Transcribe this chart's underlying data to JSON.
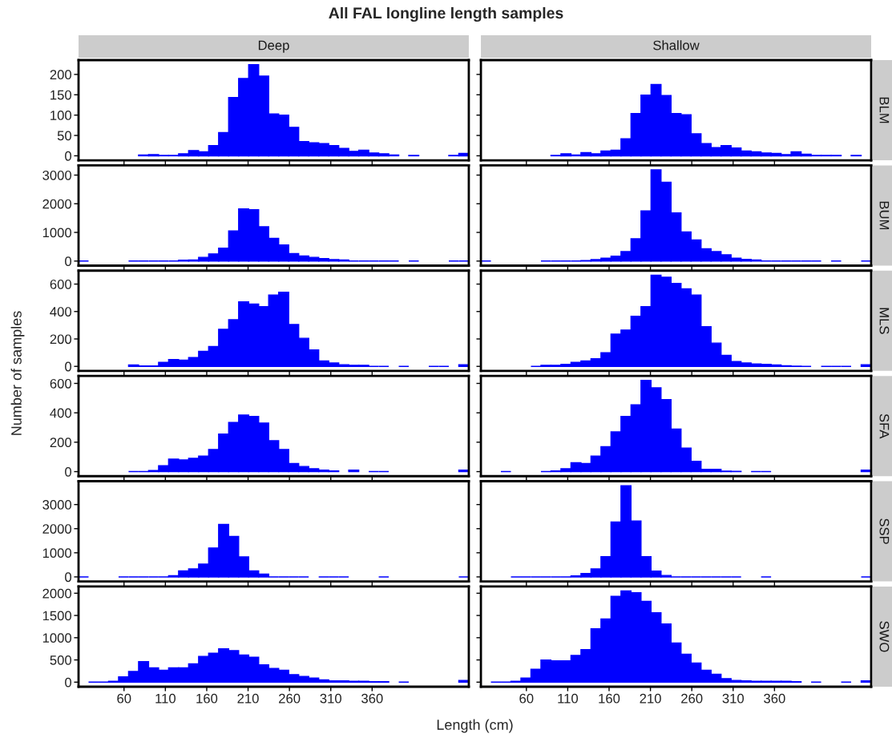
{
  "chart_data": [
    {
      "type": "histogram",
      "title": "All FAL longline length samples",
      "subtitle": "Deep",
      "color": "#0000ff",
      "tick_labels": "y",
      "xlim": [
        5,
        476.9
      ],
      "xticks": [
        60,
        110,
        160,
        210,
        260,
        310,
        360
      ],
      "ylim": [
        -11.2,
        235.2
      ],
      "yticks": [
        0,
        50,
        100,
        150,
        200
      ],
      "bins": [
        5,
        17.1,
        29.2,
        41.3,
        53.4,
        65.5,
        77.6,
        89.7,
        101.8,
        113.9,
        126,
        138.1,
        150.2,
        162.3,
        174.4,
        186.5,
        198.6,
        210.7,
        222.8,
        234.9,
        247,
        259.1,
        271.2,
        283.3,
        295.4,
        307.5,
        319.6,
        331.7,
        343.8,
        355.9,
        368,
        380.1,
        392.2,
        404.3,
        416.4,
        428.5,
        440.6,
        452.7,
        464.8,
        476.9
      ],
      "values": [
        null,
        null,
        null,
        null,
        null,
        null,
        2,
        3,
        1,
        1,
        5,
        13,
        10,
        25,
        57,
        143,
        190,
        224,
        196,
        103,
        100,
        70,
        35,
        32,
        30,
        25,
        18,
        11,
        14,
        7,
        5,
        2,
        null,
        1,
        null,
        null,
        null,
        1,
        6
      ]
    },
    {
      "type": "histogram",
      "subtitle": "Shallow",
      "y2label": "BLM",
      "color": "#0000ff",
      "tick_labels": false,
      "xlim": [
        5,
        476.9
      ],
      "xticks": [
        60,
        110,
        160,
        210,
        260,
        310,
        360
      ],
      "ylim": [
        -11.2,
        235.2
      ],
      "yticks": [
        0,
        50,
        100,
        150,
        200
      ],
      "bins": [
        5,
        17.1,
        29.2,
        41.3,
        53.4,
        65.5,
        77.6,
        89.7,
        101.8,
        113.9,
        126,
        138.1,
        150.2,
        162.3,
        174.4,
        186.5,
        198.6,
        210.7,
        222.8,
        234.9,
        247,
        259.1,
        271.2,
        283.3,
        295.4,
        307.5,
        319.6,
        331.7,
        343.8,
        355.9,
        368,
        380.1,
        392.2,
        404.3,
        416.4,
        428.5,
        440.6,
        452.7,
        464.8,
        476.9
      ],
      "values": [
        null,
        null,
        null,
        null,
        null,
        null,
        null,
        1,
        5,
        2,
        8,
        5,
        12,
        14,
        42,
        104,
        149,
        175,
        148,
        104,
        101,
        54,
        30,
        20,
        25,
        19,
        12,
        10,
        7,
        6,
        3,
        10,
        4,
        1,
        1,
        1,
        null,
        1,
        null
      ]
    },
    {
      "type": "histogram",
      "color": "#0000ff",
      "tick_labels": "y",
      "xlim": [
        5,
        476.9
      ],
      "xticks": [
        60,
        110,
        160,
        210,
        260,
        310,
        360
      ],
      "ylim": [
        -159,
        3339
      ],
      "yticks": [
        0,
        1000,
        2000,
        3000
      ],
      "bins": [
        5,
        17.1,
        29.2,
        41.3,
        53.4,
        65.5,
        77.6,
        89.7,
        101.8,
        113.9,
        126,
        138.1,
        150.2,
        162.3,
        174.4,
        186.5,
        198.6,
        210.7,
        222.8,
        234.9,
        247,
        259.1,
        271.2,
        283.3,
        295.4,
        307.5,
        319.6,
        331.7,
        343.8,
        355.9,
        368,
        380.1,
        392.2,
        404.3,
        416.4,
        428.5,
        440.6,
        452.7,
        464.8,
        476.9
      ],
      "values": [
        0,
        null,
        null,
        null,
        null,
        0,
        0,
        0,
        0,
        0,
        30,
        40,
        130,
        250,
        450,
        1050,
        1820,
        1790,
        1200,
        790,
        560,
        260,
        180,
        130,
        90,
        50,
        40,
        0,
        0,
        0,
        0,
        0,
        null,
        0,
        null,
        null,
        null,
        0,
        0
      ]
    },
    {
      "type": "histogram",
      "y2label": "BUM",
      "color": "#0000ff",
      "tick_labels": false,
      "xlim": [
        5,
        476.9
      ],
      "xticks": [
        60,
        110,
        160,
        210,
        260,
        310,
        360
      ],
      "ylim": [
        -159,
        3339
      ],
      "yticks": [
        0,
        1000,
        2000,
        3000
      ],
      "bins": [
        5,
        17.1,
        29.2,
        41.3,
        53.4,
        65.5,
        77.6,
        89.7,
        101.8,
        113.9,
        126,
        138.1,
        150.2,
        162.3,
        174.4,
        186.5,
        198.6,
        210.7,
        222.8,
        234.9,
        247,
        259.1,
        271.2,
        283.3,
        295.4,
        307.5,
        319.6,
        331.7,
        343.8,
        355.9,
        368,
        380.1,
        392.2,
        404.3,
        416.4,
        428.5,
        440.6,
        452.7,
        464.8,
        476.9
      ],
      "values": [
        0,
        null,
        null,
        null,
        null,
        null,
        0,
        0,
        0,
        0,
        20,
        50,
        100,
        170,
        330,
        780,
        1750,
        3180,
        2750,
        1680,
        1020,
        740,
        430,
        330,
        220,
        100,
        60,
        40,
        0,
        0,
        0,
        0,
        0,
        0,
        null,
        0,
        null,
        null,
        0
      ]
    },
    {
      "type": "histogram",
      "color": "#0000ff",
      "tick_labels": "y",
      "xlim": [
        5,
        476.9
      ],
      "xticks": [
        60,
        110,
        160,
        210,
        260,
        310,
        360
      ],
      "ylim": [
        -33,
        698
      ],
      "yticks": [
        0,
        200,
        400,
        600
      ],
      "bins": [
        5,
        17.1,
        29.2,
        41.3,
        53.4,
        65.5,
        77.6,
        89.7,
        101.8,
        113.9,
        126,
        138.1,
        150.2,
        162.3,
        174.4,
        186.5,
        198.6,
        210.7,
        222.8,
        234.9,
        247,
        259.1,
        271.2,
        283.3,
        295.4,
        307.5,
        319.6,
        331.7,
        343.8,
        355.9,
        368,
        380.1,
        392.2,
        404.3,
        416.4,
        428.5,
        440.6,
        452.7,
        464.8,
        476.9
      ],
      "values": [
        null,
        null,
        null,
        null,
        null,
        10,
        3,
        3,
        30,
        50,
        45,
        65,
        110,
        145,
        270,
        340,
        470,
        455,
        435,
        520,
        540,
        305,
        205,
        120,
        40,
        25,
        12,
        8,
        8,
        0,
        0,
        null,
        0,
        null,
        null,
        0,
        0,
        null,
        12
      ]
    },
    {
      "type": "histogram",
      "y2label": "MLS",
      "color": "#0000ff",
      "tick_labels": false,
      "xlim": [
        5,
        476.9
      ],
      "xticks": [
        60,
        110,
        160,
        210,
        260,
        310,
        360
      ],
      "ylim": [
        -33,
        698
      ],
      "yticks": [
        0,
        200,
        400,
        600
      ],
      "bins": [
        5,
        17.1,
        29.2,
        41.3,
        53.4,
        65.5,
        77.6,
        89.7,
        101.8,
        113.9,
        126,
        138.1,
        150.2,
        162.3,
        174.4,
        186.5,
        198.6,
        210.7,
        222.8,
        234.9,
        247,
        259.1,
        271.2,
        283.3,
        295.4,
        307.5,
        319.6,
        331.7,
        343.8,
        355.9,
        368,
        380.1,
        392.2,
        404.3,
        416.4,
        428.5,
        440.6,
        452.7,
        464.8,
        476.9
      ],
      "values": [
        null,
        null,
        null,
        null,
        null,
        0,
        8,
        8,
        15,
        30,
        40,
        55,
        100,
        235,
        265,
        365,
        435,
        665,
        650,
        605,
        565,
        520,
        290,
        170,
        80,
        35,
        25,
        18,
        15,
        10,
        5,
        2,
        0,
        null,
        0,
        0,
        0,
        null,
        12
      ]
    },
    {
      "type": "histogram",
      "ylabel": "Number of samples",
      "color": "#0000ff",
      "tick_labels": "y",
      "xlim": [
        5,
        476.9
      ],
      "xticks": [
        60,
        110,
        160,
        210,
        260,
        310,
        360
      ],
      "ylim": [
        -31,
        651
      ],
      "yticks": [
        0,
        200,
        400,
        600
      ],
      "bins": [
        5,
        17.1,
        29.2,
        41.3,
        53.4,
        65.5,
        77.6,
        89.7,
        101.8,
        113.9,
        126,
        138.1,
        150.2,
        162.3,
        174.4,
        186.5,
        198.6,
        210.7,
        222.8,
        234.9,
        247,
        259.1,
        271.2,
        283.3,
        295.4,
        307.5,
        319.6,
        331.7,
        343.8,
        355.9,
        368,
        380.1,
        392.2,
        404.3,
        416.4,
        428.5,
        440.6,
        452.7,
        464.8,
        476.9
      ],
      "values": [
        null,
        null,
        null,
        null,
        null,
        0,
        0,
        8,
        40,
        85,
        80,
        90,
        105,
        150,
        255,
        335,
        385,
        375,
        330,
        210,
        150,
        55,
        35,
        20,
        10,
        5,
        null,
        10,
        null,
        0,
        0,
        null,
        null,
        null,
        null,
        null,
        null,
        null,
        10
      ]
    },
    {
      "type": "histogram",
      "y2label": "SFA",
      "color": "#0000ff",
      "tick_labels": false,
      "xlim": [
        5,
        476.9
      ],
      "xticks": [
        60,
        110,
        160,
        210,
        260,
        310,
        360
      ],
      "ylim": [
        -31,
        651
      ],
      "yticks": [
        0,
        200,
        400,
        600
      ],
      "bins": [
        5,
        17.1,
        29.2,
        41.3,
        53.4,
        65.5,
        77.6,
        89.7,
        101.8,
        113.9,
        126,
        138.1,
        150.2,
        162.3,
        174.4,
        186.5,
        198.6,
        210.7,
        222.8,
        234.9,
        247,
        259.1,
        271.2,
        283.3,
        295.4,
        307.5,
        319.6,
        331.7,
        343.8,
        355.9,
        368,
        380.1,
        392.2,
        404.3,
        416.4,
        428.5,
        440.6,
        452.7,
        464.8,
        476.9
      ],
      "values": [
        null,
        null,
        0,
        null,
        null,
        null,
        0,
        5,
        20,
        60,
        55,
        105,
        170,
        270,
        375,
        455,
        620,
        570,
        490,
        290,
        160,
        70,
        15,
        15,
        3,
        2,
        null,
        0,
        0,
        null,
        null,
        null,
        null,
        null,
        null,
        null,
        null,
        null,
        10
      ]
    },
    {
      "type": "histogram",
      "color": "#0000ff",
      "tick_labels": "y",
      "xlim": [
        5,
        476.9
      ],
      "xticks": [
        60,
        110,
        160,
        210,
        260,
        310,
        360
      ],
      "ylim": [
        -189,
        3969
      ],
      "yticks": [
        0,
        1000,
        2000,
        3000
      ],
      "bins": [
        5,
        17.1,
        29.2,
        41.3,
        53.4,
        65.5,
        77.6,
        89.7,
        101.8,
        113.9,
        126,
        138.1,
        150.2,
        162.3,
        174.4,
        186.5,
        198.6,
        210.7,
        222.8,
        234.9,
        247,
        259.1,
        271.2,
        283.3,
        295.4,
        307.5,
        319.6,
        331.7,
        343.8,
        355.9,
        368,
        380.1,
        392.2,
        404.3,
        416.4,
        428.5,
        440.6,
        452.7,
        464.8,
        476.9
      ],
      "values": [
        0,
        null,
        null,
        null,
        0,
        0,
        0,
        0,
        0,
        50,
        250,
        330,
        530,
        1200,
        2180,
        1680,
        830,
        250,
        120,
        0,
        0,
        0,
        0,
        null,
        0,
        0,
        0,
        null,
        null,
        null,
        0,
        null,
        null,
        null,
        null,
        null,
        null,
        null,
        0
      ]
    },
    {
      "type": "histogram",
      "y2label": "SSP",
      "color": "#0000ff",
      "tick_labels": false,
      "xlim": [
        5,
        476.9
      ],
      "xticks": [
        60,
        110,
        160,
        210,
        260,
        310,
        360
      ],
      "ylim": [
        -189,
        3969
      ],
      "yticks": [
        0,
        1000,
        2000,
        3000
      ],
      "bins": [
        5,
        17.1,
        29.2,
        41.3,
        53.4,
        65.5,
        77.6,
        89.7,
        101.8,
        113.9,
        126,
        138.1,
        150.2,
        162.3,
        174.4,
        186.5,
        198.6,
        210.7,
        222.8,
        234.9,
        247,
        259.1,
        271.2,
        283.3,
        295.4,
        307.5,
        319.6,
        331.7,
        343.8,
        355.9,
        368,
        380.1,
        392.2,
        404.3,
        416.4,
        428.5,
        440.6,
        452.7,
        464.8,
        476.9
      ],
      "values": [
        null,
        null,
        null,
        0,
        0,
        0,
        0,
        0,
        0,
        40,
        140,
        330,
        840,
        2280,
        3780,
        2320,
        840,
        240,
        60,
        0,
        0,
        0,
        0,
        0,
        0,
        0,
        null,
        null,
        0,
        null,
        null,
        null,
        null,
        null,
        null,
        null,
        null,
        null,
        0
      ]
    },
    {
      "type": "histogram",
      "xlabel": "Length (cm)",
      "color": "#0000ff",
      "xlim": [
        5,
        476.9
      ],
      "xticks": [
        60,
        110,
        160,
        210,
        260,
        310,
        360
      ],
      "ylim": [
        -102.5,
        2152.5
      ],
      "yticks": [
        0,
        500,
        1000,
        1500,
        2000
      ],
      "bins": [
        5,
        17.1,
        29.2,
        41.3,
        53.4,
        65.5,
        77.6,
        89.7,
        101.8,
        113.9,
        126,
        138.1,
        150.2,
        162.3,
        174.4,
        186.5,
        198.6,
        210.7,
        222.8,
        234.9,
        247,
        259.1,
        271.2,
        283.3,
        295.4,
        307.5,
        319.6,
        331.7,
        343.8,
        355.9,
        368,
        380.1,
        392.2,
        404.3,
        416.4,
        428.5,
        440.6,
        452.7,
        464.8,
        476.9
      ],
      "values": [
        null,
        0,
        0,
        20,
        120,
        240,
        460,
        320,
        270,
        320,
        320,
        410,
        580,
        650,
        750,
        710,
        610,
        560,
        390,
        310,
        270,
        170,
        130,
        90,
        50,
        30,
        30,
        20,
        20,
        10,
        10,
        null,
        0,
        null,
        null,
        null,
        null,
        null,
        40
      ]
    },
    {
      "type": "histogram",
      "y2label": "SWO",
      "color": "#0000ff",
      "tick_labels": "x",
      "xlim": [
        5,
        476.9
      ],
      "xticks": [
        60,
        110,
        160,
        210,
        260,
        310,
        360
      ],
      "ylim": [
        -102.5,
        2152.5
      ],
      "yticks": [
        0,
        500,
        1000,
        1500,
        2000
      ],
      "bins": [
        5,
        17.1,
        29.2,
        41.3,
        53.4,
        65.5,
        77.6,
        89.7,
        101.8,
        113.9,
        126,
        138.1,
        150.2,
        162.3,
        174.4,
        186.5,
        198.6,
        210.7,
        222.8,
        234.9,
        247,
        259.1,
        271.2,
        283.3,
        295.4,
        307.5,
        319.6,
        331.7,
        343.8,
        355.9,
        368,
        380.1,
        392.2,
        404.3,
        416.4,
        428.5,
        440.6,
        452.7,
        464.8,
        476.9
      ],
      "values": [
        null,
        0,
        0,
        20,
        90,
        290,
        500,
        480,
        480,
        600,
        730,
        1200,
        1420,
        1930,
        2050,
        2010,
        1820,
        1560,
        1310,
        880,
        630,
        430,
        270,
        180,
        80,
        40,
        30,
        20,
        20,
        20,
        20,
        10,
        null,
        0,
        null,
        null,
        0,
        null,
        30
      ]
    }
  ]
}
